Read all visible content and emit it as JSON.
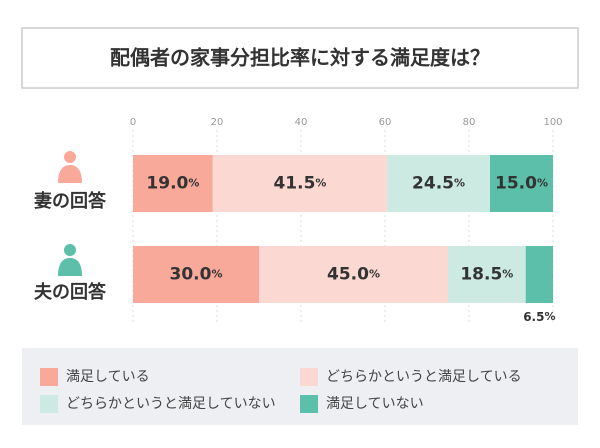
{
  "chart_data": {
    "type": "stacked-bar-horizontal",
    "title": "配偶者の家事分担比率に対する満足度は？",
    "categories": [
      "妻の回答",
      "夫の回答"
    ],
    "series": [
      {
        "name": "満足している",
        "color": "#f8a99a",
        "values": [
          19.0,
          30.0
        ],
        "value_labels": [
          "19.0%",
          "30.0%"
        ]
      },
      {
        "name": "どちらかというと満足している",
        "color": "#fbd9d2",
        "values": [
          41.5,
          45.0
        ],
        "value_labels": [
          "41.5%",
          "45.0%"
        ]
      },
      {
        "name": "どちらかというと満足していない",
        "color": "#cce9e2",
        "values": [
          24.5,
          18.5
        ],
        "value_labels": [
          "24.5%",
          "18.5%"
        ]
      },
      {
        "name": "満足していない",
        "color": "#5bbfaa",
        "values": [
          15.0,
          6.5
        ],
        "value_labels": [
          "15.0%",
          "6.5%"
        ]
      }
    ],
    "xlim": [
      0,
      100
    ],
    "xticks": [
      0,
      20,
      40,
      60,
      80,
      100
    ],
    "grid": true
  }
}
